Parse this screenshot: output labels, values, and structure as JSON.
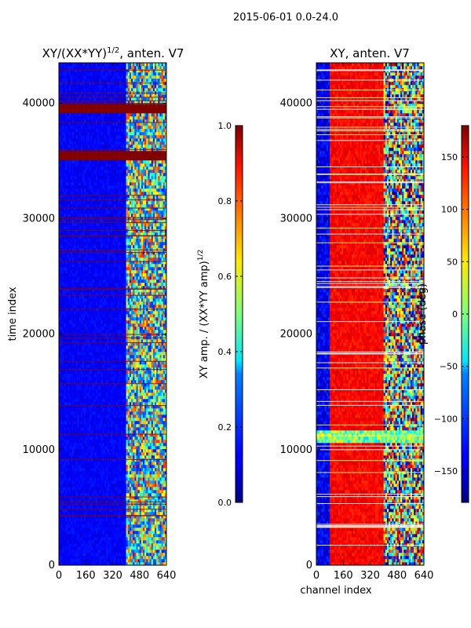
{
  "suptitle": "2015-06-01 0.0-24.0",
  "chart_data": [
    {
      "type": "heatmap",
      "title": "XY/(XX*YY)^(1/2), anten. V7",
      "title_main": "XY/(XX*YY)",
      "title_exp": "1/2",
      "title_tail": ", anten. V7",
      "xlabel": "",
      "ylabel": "time index",
      "xlim": [
        0,
        640
      ],
      "ylim": [
        0,
        43500
      ],
      "xticks": [
        0,
        160,
        320,
        480,
        640
      ],
      "yticks": [
        0,
        10000,
        20000,
        30000,
        40000
      ],
      "xtick_labels": [
        "0",
        "160",
        "320",
        "480",
        "640"
      ],
      "ytick_labels": [
        "0",
        "10000",
        "20000",
        "30000",
        "40000"
      ],
      "colormap": "jet",
      "colorbar": {
        "label": "XY amp. / (XX*YY amp)^(1/2)",
        "label_main": "XY amp. / (XX*YY amp)",
        "label_exp": "1/2",
        "range": [
          0.0,
          1.0
        ],
        "ticks": [
          0.0,
          0.2,
          0.4,
          0.6,
          0.8,
          1.0
        ],
        "tick_labels": [
          "0.0",
          "0.2",
          "0.4",
          "0.6",
          "0.8",
          "1.0"
        ]
      },
      "regions": [
        {
          "description": "background",
          "x": [
            0,
            640
          ],
          "y": [
            0,
            43500
          ],
          "value": 0.12
        },
        {
          "description": "high-amplitude channel band",
          "x": [
            400,
            640
          ],
          "y": [
            0,
            43500
          ],
          "value": 0.45
        },
        {
          "description": "saturated rows",
          "x": [
            0,
            640
          ],
          "y": [
            35000,
            36000
          ],
          "value": 1.0
        },
        {
          "description": "saturated rows",
          "x": [
            0,
            640
          ],
          "y": [
            39200,
            40000
          ],
          "value": 1.0
        }
      ]
    },
    {
      "type": "heatmap",
      "title": "XY, anten. V7",
      "xlabel": "channel index",
      "ylabel": "",
      "xlim": [
        0,
        640
      ],
      "ylim": [
        0,
        43500
      ],
      "xticks": [
        0,
        160,
        320,
        480,
        640
      ],
      "yticks": [
        0,
        10000,
        20000,
        30000,
        40000
      ],
      "xtick_labels": [
        "0",
        "160",
        "320",
        "480",
        "640"
      ],
      "ytick_labels": [
        "0",
        "10000",
        "20000",
        "30000",
        "40000"
      ],
      "colormap": "jet",
      "colorbar": {
        "label": "phase (deg)",
        "range": [
          -180,
          180
        ],
        "ticks": [
          -150,
          -100,
          -50,
          0,
          50,
          100,
          150
        ],
        "tick_labels": [
          "−150",
          "−100",
          "−50",
          "0",
          "50",
          "100",
          "150"
        ]
      },
      "regions": [
        {
          "description": "low channels phase",
          "x": [
            0,
            80
          ],
          "y": [
            0,
            43500
          ],
          "value": -140
        },
        {
          "description": "mid channels phase",
          "x": [
            80,
            400
          ],
          "y": [
            0,
            43500
          ],
          "value": 150
        },
        {
          "description": "high channels phase",
          "x": [
            400,
            640
          ],
          "y": [
            0,
            43500
          ],
          "value": 40
        }
      ]
    }
  ]
}
